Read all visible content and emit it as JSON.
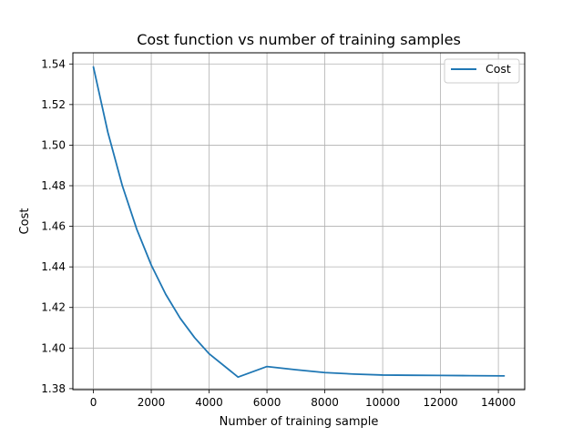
{
  "chart_data": {
    "type": "line",
    "title": "Cost function vs number of training samples",
    "xlabel": "Number of training sample",
    "ylabel": "Cost",
    "xlim": [
      -710,
      14910
    ],
    "ylim": [
      1.3795,
      1.5455
    ],
    "xticks": [
      0,
      2000,
      4000,
      6000,
      8000,
      10000,
      12000,
      14000
    ],
    "yticks": [
      1.38,
      1.4,
      1.42,
      1.44,
      1.46,
      1.48,
      1.5,
      1.52,
      1.54
    ],
    "xtick_labels": [
      "0",
      "2000",
      "4000",
      "6000",
      "8000",
      "10000",
      "12000",
      "14000"
    ],
    "ytick_labels": [
      "1.38",
      "1.40",
      "1.42",
      "1.44",
      "1.46",
      "1.48",
      "1.50",
      "1.52",
      "1.54"
    ],
    "grid": true,
    "legend_position": "top-right",
    "series": [
      {
        "name": "Cost",
        "color": "#1f77b4",
        "x": [
          0,
          500,
          1000,
          1500,
          2000,
          2500,
          3000,
          3500,
          4000,
          5000,
          6000,
          7000,
          8000,
          9000,
          10000,
          11000,
          12000,
          13000,
          14200
        ],
        "y": [
          1.5385,
          1.5063,
          1.48,
          1.4585,
          1.4409,
          1.4265,
          1.4147,
          1.4051,
          1.3972,
          1.3857,
          1.3909,
          1.3893,
          1.3879,
          1.3872,
          1.3867,
          1.3866,
          1.3865,
          1.3864,
          1.3863
        ]
      }
    ]
  }
}
